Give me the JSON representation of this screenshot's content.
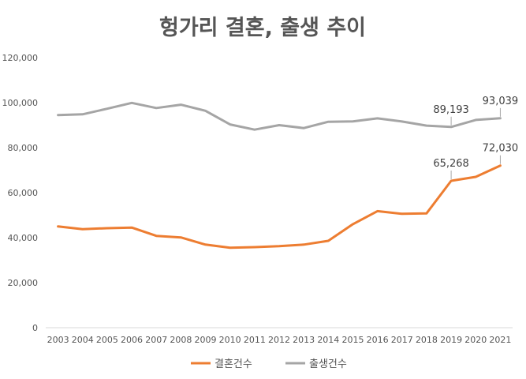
{
  "chart_data": {
    "type": "line",
    "title": "헝가리 결혼, 출생 추이",
    "xlabel": "",
    "ylabel": "",
    "x": [
      "2003",
      "2004",
      "2005",
      "2006",
      "2007",
      "2008",
      "2009",
      "2010",
      "2011",
      "2012",
      "2013",
      "2014",
      "2015",
      "2016",
      "2017",
      "2018",
      "2019",
      "2020",
      "2021"
    ],
    "ylim": [
      0,
      120000
    ],
    "yticks": [
      0,
      20000,
      40000,
      60000,
      80000,
      100000,
      120000
    ],
    "ytick_labels": [
      "0",
      "20,000",
      "40,000",
      "60,000",
      "80,000",
      "100,000",
      "120,000"
    ],
    "grid": false,
    "legend_position": "bottom",
    "series": [
      {
        "name": "결혼건수",
        "color": "#ED7D31",
        "values": [
          45000,
          43800,
          44200,
          44500,
          40800,
          40100,
          36900,
          35500,
          35800,
          36200,
          36900,
          38600,
          46000,
          51800,
          50600,
          50800,
          65268,
          67000,
          72030
        ]
      },
      {
        "name": "출생건수",
        "color": "#A5A5A5",
        "values": [
          94500,
          94800,
          97300,
          99900,
          97600,
          99100,
          96400,
          90300,
          88000,
          90000,
          88700,
          91500,
          91700,
          93000,
          91600,
          89800,
          89193,
          92300,
          93039
        ]
      }
    ],
    "annotations": [
      {
        "series": 0,
        "index": 16,
        "text": "65,268"
      },
      {
        "series": 0,
        "index": 18,
        "text": "72,030"
      },
      {
        "series": 1,
        "index": 16,
        "text": "89,193"
      },
      {
        "series": 1,
        "index": 18,
        "text": "93,039"
      }
    ]
  }
}
